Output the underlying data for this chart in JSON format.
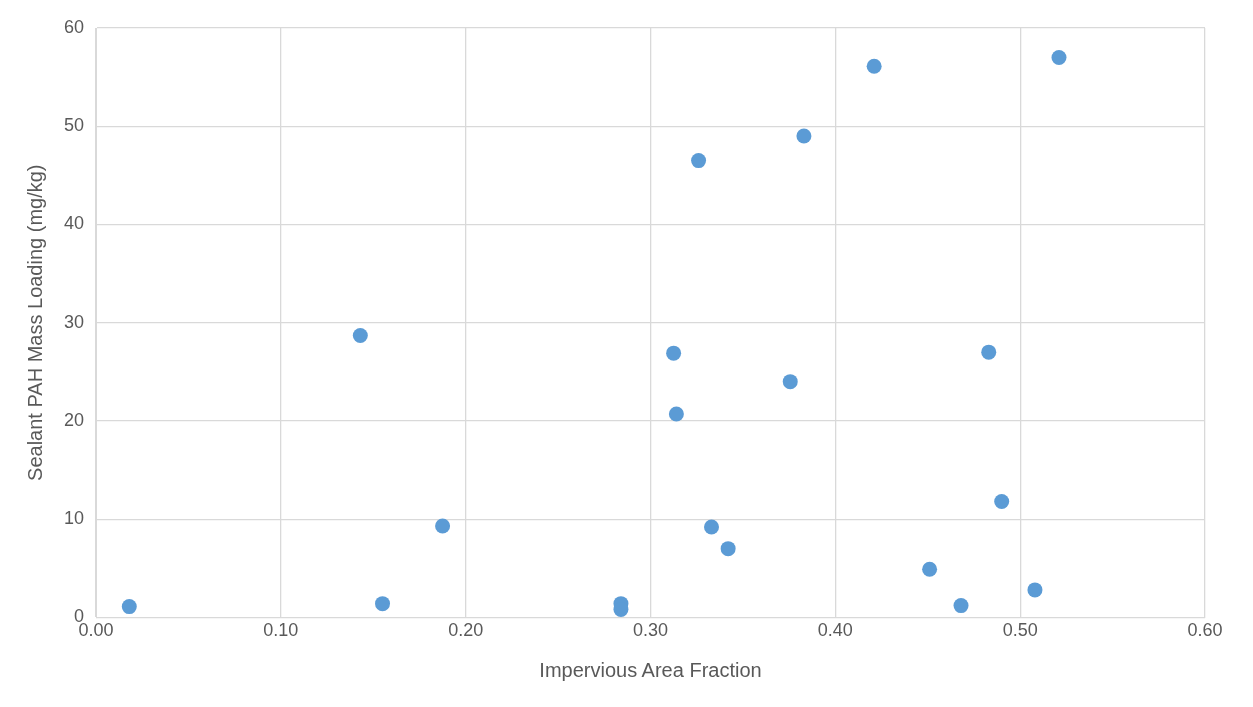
{
  "chart_data": {
    "type": "scatter",
    "xlabel": "Impervious Area Fraction",
    "ylabel": "Sealant PAH Mass Loading (mg/kg)",
    "x": [
      0.018,
      0.143,
      0.155,
      0.1875,
      0.284,
      0.284,
      0.3125,
      0.314,
      0.326,
      0.333,
      0.342,
      0.3756,
      0.383,
      0.421,
      0.451,
      0.468,
      0.483,
      0.49,
      0.508,
      0.521
    ],
    "series": [
      {
        "color": "#5b9bd5",
        "values": [
          1.1,
          28.7,
          1.4,
          9.3,
          1.4,
          0.8,
          26.9,
          20.7,
          46.5,
          9.2,
          7.0,
          24.0,
          49.0,
          56.1,
          4.9,
          1.2,
          27.0,
          11.8,
          2.8,
          57.0
        ]
      }
    ],
    "xlim": [
      0,
      0.6
    ],
    "xticks": [
      {
        "value": 0,
        "label": "0.00"
      },
      {
        "value": 0.1,
        "label": "0.10"
      },
      {
        "value": 0.2,
        "label": "0.20"
      },
      {
        "value": 0.3,
        "label": "0.30"
      },
      {
        "value": 0.4,
        "label": "0.40"
      },
      {
        "value": 0.5,
        "label": "0.50"
      },
      {
        "value": 0.6,
        "label": "0.60"
      }
    ],
    "ylim": [
      0,
      60
    ],
    "yticks": [
      0,
      10,
      20,
      30,
      40,
      50,
      60
    ],
    "grid": true,
    "legend": false,
    "marker": "circle"
  }
}
